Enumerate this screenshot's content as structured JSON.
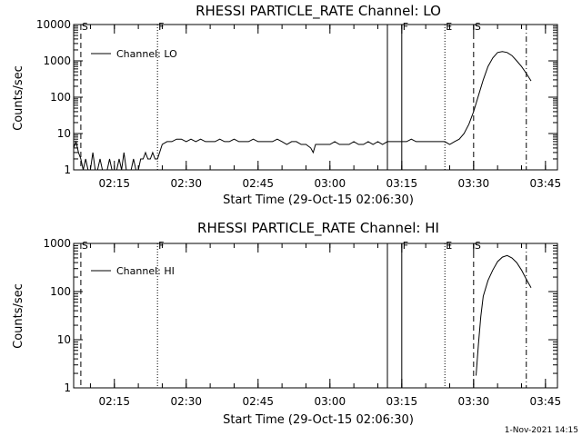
{
  "timestamp": "1-Nov-2021 14:15",
  "chart_data": [
    {
      "type": "line",
      "title": "RHESSI PARTICLE_RATE Channel: LO",
      "xlabel": "Start Time (29-Oct-15 02:06:30)",
      "ylabel": "Counts/sec",
      "yscale": "log",
      "xlim": [
        "02:06:30",
        "03:47:30"
      ],
      "ylim": [
        1,
        10000
      ],
      "x_ticks": [
        "02:15",
        "02:30",
        "02:45",
        "03:00",
        "03:15",
        "03:30",
        "03:45"
      ],
      "y_ticks": [
        "1",
        "10",
        "100",
        "1000",
        "10000"
      ],
      "legend": "top-left",
      "series": [
        {
          "name": "Channel: LO",
          "x": [
            "02:06:30",
            "02:07:00",
            "02:07:30",
            "02:08:00",
            "02:08:30",
            "02:09:00",
            "02:09:30",
            "02:10:00",
            "02:10:30",
            "02:11:00",
            "02:11:30",
            "02:12:00",
            "02:12:30",
            "02:13:00",
            "02:13:30",
            "02:14:00",
            "02:14:30",
            "02:15:00",
            "02:15:30",
            "02:16:00",
            "02:16:30",
            "02:17:00",
            "02:17:30",
            "02:18:00",
            "02:18:30",
            "02:19:00",
            "02:19:30",
            "02:20:00",
            "02:20:30",
            "02:21:00",
            "02:21:30",
            "02:22:00",
            "02:22:30",
            "02:23:00",
            "02:23:30",
            "02:24:00",
            "02:25:00",
            "02:26:00",
            "02:27:00",
            "02:28:00",
            "02:29:00",
            "02:30:00",
            "02:31:00",
            "02:32:00",
            "02:33:00",
            "02:34:00",
            "02:35:00",
            "02:36:00",
            "02:37:00",
            "02:38:00",
            "02:39:00",
            "02:40:00",
            "02:41:00",
            "02:42:00",
            "02:43:00",
            "02:44:00",
            "02:45:00",
            "02:46:00",
            "02:47:00",
            "02:48:00",
            "02:49:00",
            "02:50:00",
            "02:51:00",
            "02:52:00",
            "02:53:00",
            "02:54:00",
            "02:55:00",
            "02:56:00",
            "02:56:30",
            "02:57:00",
            "02:58:00",
            "02:59:00",
            "03:00:00",
            "03:01:00",
            "03:02:00",
            "03:03:00",
            "03:04:00",
            "03:05:00",
            "03:06:00",
            "03:07:00",
            "03:08:00",
            "03:09:00",
            "03:10:00",
            "03:11:00",
            "03:12:00",
            "03:13:00",
            "03:14:00",
            "03:15:00",
            "03:16:00",
            "03:17:00",
            "03:18:00",
            "03:19:00",
            "03:20:00",
            "03:21:00",
            "03:22:00",
            "03:23:00",
            "03:24:00",
            "03:25:00",
            "03:26:00",
            "03:27:00",
            "03:28:00",
            "03:29:00",
            "03:30:00",
            "03:31:00",
            "03:32:00",
            "03:33:00",
            "03:34:00",
            "03:35:00",
            "03:36:00",
            "03:37:00",
            "03:38:00",
            "03:39:00",
            "03:40:00",
            "03:41:00",
            "03:42:00"
          ],
          "values": [
            4,
            6,
            3,
            2,
            1,
            2,
            1,
            1,
            3,
            1,
            1,
            2,
            1,
            1,
            1,
            2,
            1,
            1,
            1,
            2,
            1,
            3,
            1,
            1,
            1,
            2,
            1,
            1,
            2,
            2,
            3,
            2,
            2,
            3,
            2,
            2,
            5,
            6,
            6,
            7,
            7,
            6,
            7,
            6,
            7,
            6,
            6,
            6,
            7,
            6,
            6,
            7,
            6,
            6,
            6,
            7,
            6,
            6,
            6,
            6,
            7,
            6,
            5,
            6,
            6,
            5,
            5,
            4,
            3,
            5,
            5,
            5,
            5,
            6,
            5,
            5,
            5,
            6,
            5,
            5,
            6,
            5,
            6,
            5,
            6,
            6,
            6,
            6,
            6,
            7,
            6,
            6,
            6,
            6,
            6,
            6,
            6,
            5,
            6,
            7,
            10,
            18,
            40,
            110,
            300,
            700,
            1200,
            1700,
            1800,
            1700,
            1400,
            1000,
            700,
            450,
            280
          ]
        }
      ]
    },
    {
      "type": "line",
      "title": "RHESSI PARTICLE_RATE Channel: HI",
      "xlabel": "Start Time (29-Oct-15 02:06:30)",
      "ylabel": "Counts/sec",
      "yscale": "log",
      "xlim": [
        "02:06:30",
        "03:47:30"
      ],
      "ylim": [
        1,
        1000
      ],
      "x_ticks": [
        "02:15",
        "02:30",
        "02:45",
        "03:00",
        "03:15",
        "03:30",
        "03:45"
      ],
      "y_ticks": [
        "1",
        "10",
        "100",
        "1000"
      ],
      "legend": "top-left",
      "series": [
        {
          "name": "Channel: HI",
          "x": [
            "03:30:30",
            "03:31:00",
            "03:31:30",
            "03:32:00",
            "03:33:00",
            "03:34:00",
            "03:35:00",
            "03:36:00",
            "03:37:00",
            "03:38:00",
            "03:39:00",
            "03:40:00",
            "03:41:00",
            "03:42:00"
          ],
          "values": [
            1.8,
            8,
            30,
            80,
            170,
            280,
            420,
            520,
            560,
            500,
            400,
            280,
            180,
            120
          ]
        }
      ]
    }
  ],
  "markers": [
    {
      "label": "S",
      "time": "02:08:00",
      "style": "dashed"
    },
    {
      "label": "F",
      "time": "02:24:00",
      "style": "dotted"
    },
    {
      "label": "",
      "time": "03:12:00",
      "style": "solid"
    },
    {
      "label": "F",
      "time": "03:15:00",
      "style": "solid"
    },
    {
      "label": "E",
      "time": "03:24:00",
      "style": "dotted"
    },
    {
      "label": "S",
      "time": "03:30:00",
      "style": "dashed"
    },
    {
      "label": "",
      "time": "03:41:00",
      "style": "dashdot"
    }
  ]
}
